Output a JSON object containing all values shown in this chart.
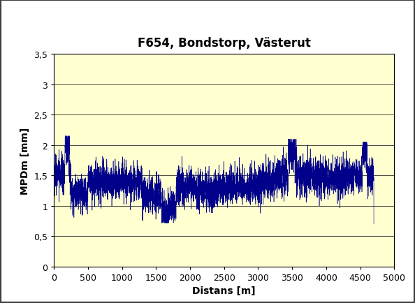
{
  "title": "F654, Bondstorp, Västerut",
  "xlabel": "Distans [m]",
  "ylabel": "MPDm [mm]",
  "xlim": [
    0,
    5000
  ],
  "ylim": [
    0,
    3.5
  ],
  "xticks": [
    0,
    500,
    1000,
    1500,
    2000,
    2500,
    3000,
    3500,
    4000,
    4500,
    5000
  ],
  "yticks": [
    0,
    0.5,
    1.0,
    1.5,
    2.0,
    2.5,
    3.0,
    3.5
  ],
  "line_color": "#00008B",
  "background_color": "#FFFFD0",
  "outer_background": "#FFFFFF",
  "border_color": "#404040",
  "title_fontsize": 12,
  "label_fontsize": 10,
  "tick_fontsize": 9,
  "num_points": 4700,
  "seed": 42,
  "segment_params": [
    {
      "start": 0,
      "end": 250,
      "mean": 1.52,
      "std": 0.14
    },
    {
      "start": 250,
      "end": 500,
      "mean": 1.2,
      "std": 0.12
    },
    {
      "start": 500,
      "end": 900,
      "mean": 1.38,
      "std": 0.12
    },
    {
      "start": 900,
      "end": 1300,
      "mean": 1.4,
      "std": 0.11
    },
    {
      "start": 1300,
      "end": 1700,
      "mean": 1.18,
      "std": 0.13
    },
    {
      "start": 1700,
      "end": 2100,
      "mean": 1.32,
      "std": 0.11
    },
    {
      "start": 2100,
      "end": 2500,
      "mean": 1.28,
      "std": 0.13
    },
    {
      "start": 2500,
      "end": 2900,
      "mean": 1.32,
      "std": 0.11
    },
    {
      "start": 2900,
      "end": 3200,
      "mean": 1.38,
      "std": 0.12
    },
    {
      "start": 3200,
      "end": 3600,
      "mean": 1.5,
      "std": 0.14
    },
    {
      "start": 3600,
      "end": 4000,
      "mean": 1.48,
      "std": 0.13
    },
    {
      "start": 4000,
      "end": 4400,
      "mean": 1.46,
      "std": 0.12
    },
    {
      "start": 4400,
      "end": 4700,
      "mean": 1.5,
      "std": 0.12
    }
  ]
}
